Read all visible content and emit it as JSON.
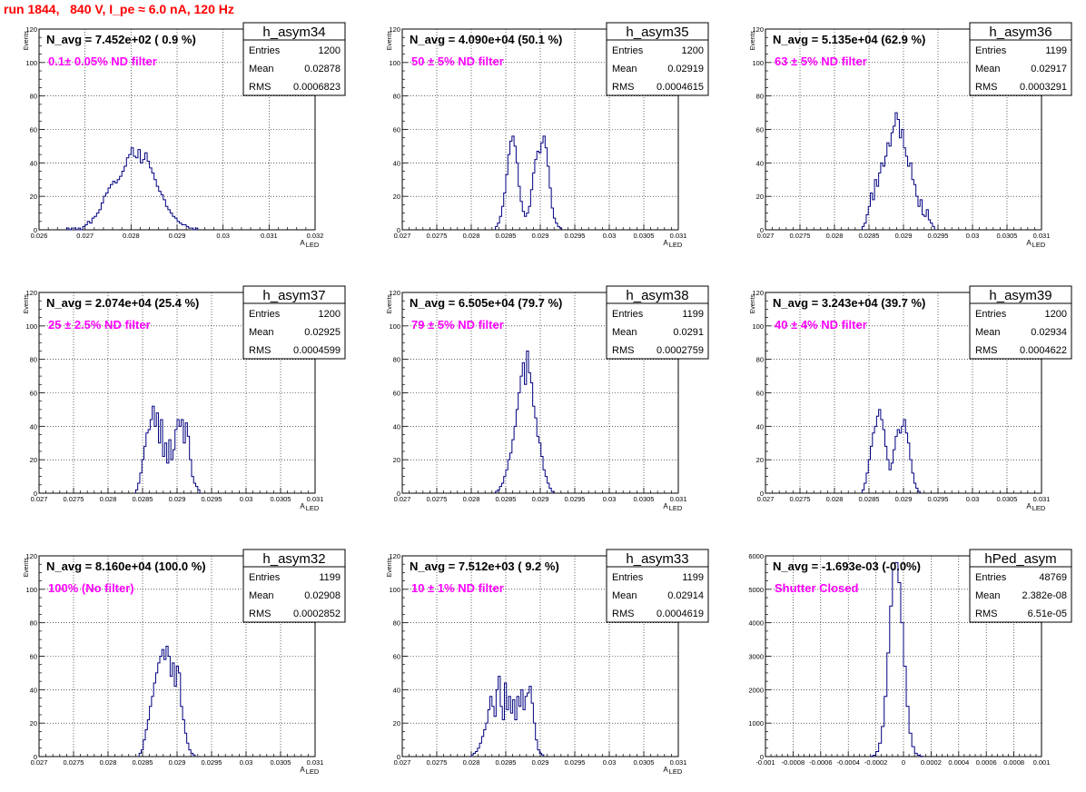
{
  "title": "run 1844,   840 V, I_pe ≈ 6.0 nA, 120 Hz",
  "chart_data": [
    {
      "type": "histogram",
      "name": "h_asym34",
      "n_avg": "N_avg = 7.452e+02 ( 0.9 %)",
      "annotation": "0.1± 0.05% ND filter",
      "stats": [
        {
          "label": "Entries",
          "value": "1200"
        },
        {
          "label": "Mean",
          "value": "0.02878"
        },
        {
          "label": "RMS",
          "value": "0.0006823"
        }
      ],
      "ylabel": "Events",
      "xlabel": "A",
      "xlabel_sub": "LED",
      "xlim": [
        0.026,
        0.032
      ],
      "ylim": [
        0,
        120
      ],
      "xticks": [
        0.026,
        0.027,
        0.028,
        0.029,
        0.03,
        0.031,
        0.032
      ],
      "xtick_labels": [
        "0.026",
        "0.027",
        "0.028",
        "0.029",
        "0.03",
        "0.031",
        "0.032"
      ],
      "yticks": [
        0,
        20,
        40,
        60,
        80,
        100,
        120
      ],
      "ytick_labels": [
        "0",
        "20",
        "40",
        "60",
        "80",
        "100",
        "120"
      ],
      "bins": {
        "start": 0.0266,
        "width": 5e-05,
        "counts": [
          1,
          0,
          1,
          1,
          0,
          1,
          0,
          2,
          3,
          5,
          4,
          7,
          8,
          10,
          12,
          16,
          20,
          22,
          25,
          27,
          29,
          28,
          30,
          32,
          35,
          38,
          43,
          45,
          49,
          44,
          43,
          48,
          40,
          42,
          46,
          41,
          37,
          34,
          30,
          26,
          23,
          21,
          18,
          14,
          12,
          10,
          8,
          7,
          5,
          4,
          3,
          3,
          2,
          1,
          1,
          0,
          1
        ]
      },
      "grid": true
    },
    {
      "type": "histogram",
      "name": "h_asym35",
      "n_avg": "N_avg = 4.090e+04 (50.1 %)",
      "annotation": "50 ± 5% ND filter",
      "stats": [
        {
          "label": "Entries",
          "value": "1200"
        },
        {
          "label": "Mean",
          "value": "0.02919"
        },
        {
          "label": "RMS",
          "value": "0.0004615"
        }
      ],
      "ylabel": "Events",
      "xlabel": "A",
      "xlabel_sub": "LED",
      "xlim": [
        0.027,
        0.031
      ],
      "ylim": [
        0,
        120
      ],
      "xticks": [
        0.027,
        0.0275,
        0.028,
        0.0285,
        0.029,
        0.0295,
        0.03,
        0.0305,
        0.031
      ],
      "xtick_labels": [
        "0.027",
        "0.0275",
        "0.028",
        "0.0285",
        "0.029",
        "0.0295",
        "0.03",
        "0.0305",
        "0.031"
      ],
      "yticks": [
        0,
        20,
        40,
        60,
        80,
        100,
        120
      ],
      "ytick_labels": [
        "0",
        "20",
        "40",
        "60",
        "80",
        "100",
        "120"
      ],
      "bins": {
        "start": 0.02835,
        "width": 3e-05,
        "counts": [
          2,
          4,
          8,
          14,
          22,
          33,
          45,
          53,
          56,
          50,
          40,
          26,
          17,
          11,
          8,
          10,
          14,
          24,
          34,
          42,
          47,
          46,
          52,
          56,
          49,
          38,
          25,
          13,
          7,
          4,
          2,
          1
        ]
      },
      "grid": true
    },
    {
      "type": "histogram",
      "name": "h_asym36",
      "n_avg": "N_avg = 5.135e+04 (62.9 %)",
      "annotation": "63 ± 5% ND filter",
      "stats": [
        {
          "label": "Entries",
          "value": "1199"
        },
        {
          "label": "Mean",
          "value": "0.02917"
        },
        {
          "label": "RMS",
          "value": "0.0003291"
        }
      ],
      "ylabel": "Events",
      "xlabel": "A",
      "xlabel_sub": "LED",
      "xlim": [
        0.027,
        0.031
      ],
      "ylim": [
        0,
        120
      ],
      "xticks": [
        0.027,
        0.0275,
        0.028,
        0.0285,
        0.029,
        0.0295,
        0.03,
        0.0305,
        0.031
      ],
      "xtick_labels": [
        "0.027",
        "0.0275",
        "0.028",
        "0.0285",
        "0.029",
        "0.0295",
        "0.03",
        "0.0305",
        "0.031"
      ],
      "yticks": [
        0,
        20,
        40,
        60,
        80,
        100,
        120
      ],
      "ytick_labels": [
        "0",
        "20",
        "40",
        "60",
        "80",
        "100",
        "120"
      ],
      "bins": {
        "start": 0.0284,
        "width": 3e-05,
        "counts": [
          2,
          4,
          9,
          14,
          22,
          18,
          30,
          26,
          34,
          40,
          38,
          44,
          52,
          50,
          58,
          62,
          70,
          66,
          55,
          60,
          49,
          44,
          38,
          40,
          30,
          27,
          20,
          14,
          18,
          9,
          8,
          12,
          6,
          4,
          2
        ]
      },
      "grid": true
    },
    {
      "type": "histogram",
      "name": "h_asym37",
      "n_avg": "N_avg = 2.074e+04 (25.4 %)",
      "annotation": "25 ± 2.5% ND filter",
      "stats": [
        {
          "label": "Entries",
          "value": "1200"
        },
        {
          "label": "Mean",
          "value": "0.02925"
        },
        {
          "label": "RMS",
          "value": "0.0004599"
        }
      ],
      "ylabel": "Events",
      "xlabel": "A",
      "xlabel_sub": "LED",
      "xlim": [
        0.027,
        0.031
      ],
      "ylim": [
        0,
        120
      ],
      "xticks": [
        0.027,
        0.0275,
        0.028,
        0.0285,
        0.029,
        0.0295,
        0.03,
        0.0305,
        0.031
      ],
      "xtick_labels": [
        "0.027",
        "0.0275",
        "0.028",
        "0.0285",
        "0.029",
        "0.0295",
        "0.03",
        "0.0305",
        "0.031"
      ],
      "yticks": [
        0,
        20,
        40,
        60,
        80,
        100,
        120
      ],
      "ytick_labels": [
        "0",
        "20",
        "40",
        "60",
        "80",
        "100",
        "120"
      ],
      "bins": {
        "start": 0.0284,
        "width": 3e-05,
        "counts": [
          2,
          6,
          12,
          20,
          28,
          36,
          38,
          44,
          52,
          40,
          48,
          30,
          44,
          22,
          30,
          18,
          32,
          20,
          26,
          38,
          44,
          40,
          44,
          30,
          42,
          34,
          20,
          10,
          6,
          4,
          2
        ]
      },
      "grid": true
    },
    {
      "type": "histogram",
      "name": "h_asym38",
      "n_avg": "N_avg = 6.505e+04 (79.7 %)",
      "annotation": "79 ± 5% ND filter",
      "stats": [
        {
          "label": "Entries",
          "value": "1199"
        },
        {
          "label": "Mean",
          "value": "0.0291"
        },
        {
          "label": "RMS",
          "value": "0.0002759"
        }
      ],
      "ylabel": "Events",
      "xlabel": "A",
      "xlabel_sub": "LED",
      "xlim": [
        0.027,
        0.031
      ],
      "ylim": [
        0,
        120
      ],
      "xticks": [
        0.027,
        0.0275,
        0.028,
        0.0285,
        0.029,
        0.0295,
        0.03,
        0.0305,
        0.031
      ],
      "xtick_labels": [
        "0.027",
        "0.0275",
        "0.028",
        "0.0285",
        "0.029",
        "0.0295",
        "0.03",
        "0.0305",
        "0.031"
      ],
      "yticks": [
        0,
        20,
        40,
        60,
        80,
        100,
        120
      ],
      "ytick_labels": [
        "0",
        "20",
        "40",
        "60",
        "80",
        "100",
        "120"
      ],
      "bins": {
        "start": 0.02835,
        "width": 3e-05,
        "counts": [
          1,
          2,
          4,
          6,
          10,
          14,
          20,
          24,
          32,
          40,
          50,
          60,
          70,
          78,
          65,
          85,
          72,
          66,
          52,
          45,
          34,
          30,
          22,
          14,
          10,
          6,
          3,
          1
        ]
      },
      "grid": true
    },
    {
      "type": "histogram",
      "name": "h_asym39",
      "n_avg": "N_avg = 3.243e+04 (39.7 %)",
      "annotation": "40 ± 4% ND filter",
      "stats": [
        {
          "label": "Entries",
          "value": "1200"
        },
        {
          "label": "Mean",
          "value": "0.02934"
        },
        {
          "label": "RMS",
          "value": "0.0004622"
        }
      ],
      "ylabel": "Events",
      "xlabel": "A",
      "xlabel_sub": "LED",
      "xlim": [
        0.027,
        0.031
      ],
      "ylim": [
        0,
        120
      ],
      "xticks": [
        0.027,
        0.0275,
        0.028,
        0.0285,
        0.029,
        0.0295,
        0.03,
        0.0305,
        0.031
      ],
      "xtick_labels": [
        "0.027",
        "0.0275",
        "0.028",
        "0.0285",
        "0.029",
        "0.0295",
        "0.03",
        "0.0305",
        "0.031"
      ],
      "yticks": [
        0,
        20,
        40,
        60,
        80,
        100,
        120
      ],
      "ytick_labels": [
        "0",
        "20",
        "40",
        "60",
        "80",
        "100",
        "120"
      ],
      "bins": {
        "start": 0.0284,
        "width": 3e-05,
        "counts": [
          2,
          6,
          12,
          20,
          28,
          36,
          40,
          46,
          50,
          44,
          38,
          28,
          20,
          14,
          18,
          26,
          34,
          38,
          36,
          40,
          44,
          36,
          30,
          20,
          12,
          6,
          3,
          1
        ]
      },
      "grid": true
    },
    {
      "type": "histogram",
      "name": "h_asym32",
      "n_avg": "N_avg = 8.160e+04 (100.0 %)",
      "annotation": "100% (No filter)",
      "stats": [
        {
          "label": "Entries",
          "value": "1199"
        },
        {
          "label": "Mean",
          "value": "0.02908"
        },
        {
          "label": "RMS",
          "value": "0.0002852"
        }
      ],
      "ylabel": "Events",
      "xlabel": "A",
      "xlabel_sub": "LED",
      "xlim": [
        0.027,
        0.031
      ],
      "ylim": [
        0,
        120
      ],
      "xticks": [
        0.027,
        0.0275,
        0.028,
        0.0285,
        0.029,
        0.0295,
        0.03,
        0.0305,
        0.031
      ],
      "xtick_labels": [
        "0.027",
        "0.0275",
        "0.028",
        "0.0285",
        "0.029",
        "0.0295",
        "0.03",
        "0.0305",
        "0.031"
      ],
      "yticks": [
        0,
        20,
        40,
        60,
        80,
        100,
        120
      ],
      "ytick_labels": [
        "0",
        "20",
        "40",
        "60",
        "80",
        "100",
        "120"
      ],
      "bins": {
        "start": 0.02845,
        "width": 3e-05,
        "counts": [
          2,
          4,
          10,
          16,
          22,
          30,
          36,
          44,
          50,
          56,
          60,
          64,
          58,
          66,
          60,
          48,
          56,
          42,
          54,
          50,
          30,
          22,
          14,
          8,
          4,
          2,
          1
        ]
      },
      "grid": true
    },
    {
      "type": "histogram",
      "name": "h_asym33",
      "n_avg": "N_avg = 7.512e+03 ( 9.2 %)",
      "annotation": "10 ± 1% ND filter",
      "stats": [
        {
          "label": "Entries",
          "value": "1199"
        },
        {
          "label": "Mean",
          "value": "0.02914"
        },
        {
          "label": "RMS",
          "value": "0.0004619"
        }
      ],
      "ylabel": "Events",
      "xlabel": "A",
      "xlabel_sub": "LED",
      "xlim": [
        0.027,
        0.031
      ],
      "ylim": [
        0,
        120
      ],
      "xticks": [
        0.027,
        0.0275,
        0.028,
        0.0285,
        0.029,
        0.0295,
        0.03,
        0.0305,
        0.031
      ],
      "xtick_labels": [
        "0.027",
        "0.0275",
        "0.028",
        "0.0285",
        "0.029",
        "0.0295",
        "0.03",
        "0.0305",
        "0.031"
      ],
      "yticks": [
        0,
        20,
        40,
        60,
        80,
        100,
        120
      ],
      "ytick_labels": [
        "0",
        "20",
        "40",
        "60",
        "80",
        "100",
        "120"
      ],
      "bins": {
        "start": 0.028,
        "width": 3e-05,
        "counts": [
          1,
          2,
          3,
          5,
          8,
          12,
          16,
          20,
          28,
          36,
          30,
          24,
          40,
          48,
          30,
          22,
          44,
          28,
          36,
          26,
          34,
          22,
          36,
          30,
          40,
          28,
          36,
          38,
          42,
          32,
          20,
          10,
          4,
          2,
          1
        ]
      },
      "grid": true
    },
    {
      "type": "histogram",
      "name": "hPed_asym",
      "n_avg": "N_avg = -1.693e-03 (-0.0%)",
      "annotation": "Shutter Closed",
      "stats": [
        {
          "label": "Entries",
          "value": "48769"
        },
        {
          "label": "Mean",
          "value": "2.382e-08"
        },
        {
          "label": "RMS",
          "value": "6.51e-05"
        }
      ],
      "ylabel": "",
      "xlabel": "",
      "xlabel_sub": "",
      "xlim": [
        -0.001,
        0.001
      ],
      "ylim": [
        0,
        6000
      ],
      "xticks": [
        -0.001,
        -0.0008,
        -0.0006,
        -0.0004,
        -0.0002,
        0,
        0.0002,
        0.0004,
        0.0006,
        0.0008,
        0.001
      ],
      "xtick_labels": [
        "-0.001",
        "-0.0008",
        "-0.0006",
        "-0.0004",
        "-0.0002",
        "0",
        "0.0002",
        "0.0004",
        "0.0006",
        "0.0008",
        "0.001"
      ],
      "yticks": [
        0,
        1000,
        2000,
        3000,
        4000,
        5000,
        6000
      ],
      "ytick_labels": [
        "0",
        "1000",
        "2000",
        "3000",
        "4000",
        "5000",
        "6000"
      ],
      "bins": {
        "start": -0.00024,
        "width": 2e-05,
        "counts": [
          10,
          40,
          150,
          400,
          900,
          1800,
          3100,
          4500,
          5600,
          5800,
          5200,
          4000,
          2700,
          1500,
          700,
          300,
          100,
          40,
          10
        ]
      },
      "grid": true
    }
  ]
}
